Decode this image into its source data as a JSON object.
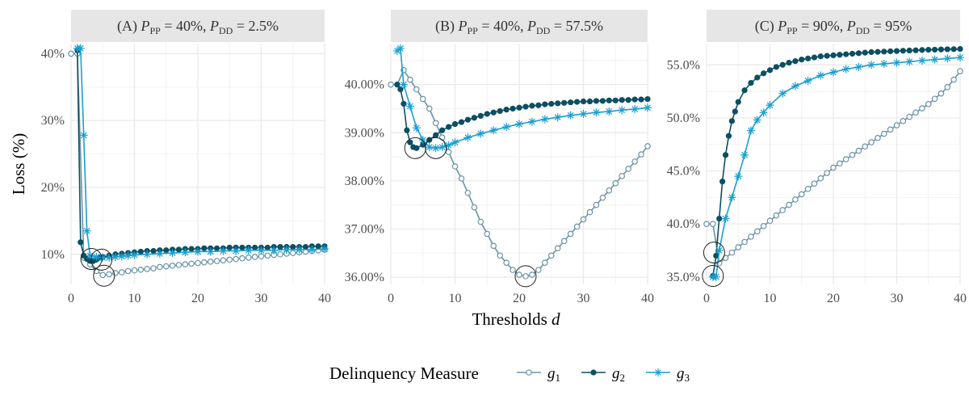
{
  "y_axis_title": "Loss (%)",
  "x_axis_title": "Thresholds",
  "x_axis_title_var": "d",
  "legend": {
    "title": "Delinquency Measure",
    "items": [
      {
        "label": "g",
        "sub": "1"
      },
      {
        "label": "g",
        "sub": "2"
      },
      {
        "label": "g",
        "sub": "3"
      }
    ]
  },
  "colors": {
    "g1": "#6b93a6",
    "g2": "#0b4f63",
    "g3": "#1a9fd1",
    "strip_bg": "#e6e6e6",
    "grid": "#ebebeb"
  },
  "chart_data": [
    {
      "type": "line",
      "title": "(A) P_PP = 40%,  P_DD = 2.5%",
      "title_parts": {
        "prefix": "(A) ",
        "p1": "P",
        "s1": "PP",
        "v1": " = 40%,  ",
        "p2": "P",
        "s2": "DD",
        "v2": " = 2.5%"
      },
      "xlim": [
        0,
        40
      ],
      "ylim": [
        5.5,
        41.5
      ],
      "x_ticks": [
        0,
        10,
        20,
        30,
        40
      ],
      "y_ticks": [
        10,
        20,
        30,
        40
      ],
      "y_tick_labels": [
        "10%",
        "20%",
        "30%",
        "40%"
      ],
      "series": [
        {
          "name": "g1",
          "x": [
            0,
            1,
            2,
            3,
            4,
            5,
            6,
            7,
            8,
            9,
            10,
            11,
            12,
            13,
            14,
            15,
            16,
            17,
            18,
            19,
            20,
            21,
            22,
            23,
            24,
            25,
            26,
            27,
            28,
            29,
            30,
            31,
            32,
            33,
            34,
            35,
            36,
            37,
            38,
            39,
            40
          ],
          "y": [
            40,
            40,
            9.5,
            8.5,
            7.5,
            6.9,
            7.0,
            7.2,
            7.3,
            7.5,
            7.6,
            7.7,
            7.8,
            7.9,
            8.1,
            8.2,
            8.3,
            8.4,
            8.5,
            8.6,
            8.7,
            8.8,
            8.9,
            9.0,
            9.1,
            9.2,
            9.3,
            9.4,
            9.5,
            9.6,
            9.7,
            9.8,
            9.9,
            10.0,
            10.1,
            10.2,
            10.3,
            10.4,
            10.5,
            10.6,
            10.7
          ]
        },
        {
          "name": "g2",
          "x": [
            1,
            1.5,
            2,
            2.5,
            3,
            3.5,
            4,
            4.5,
            5,
            6,
            7,
            8,
            9,
            10,
            11,
            12,
            13,
            14,
            15,
            16,
            17,
            18,
            19,
            20,
            21,
            22,
            23,
            24,
            25,
            26,
            27,
            28,
            29,
            30,
            31,
            32,
            33,
            34,
            35,
            36,
            37,
            38,
            39,
            40
          ],
          "y": [
            40.5,
            11.8,
            9.8,
            9.3,
            9.0,
            9.0,
            9.2,
            9.5,
            9.6,
            9.8,
            10.0,
            10.1,
            10.2,
            10.3,
            10.4,
            10.5,
            10.5,
            10.6,
            10.6,
            10.7,
            10.7,
            10.8,
            10.8,
            10.8,
            10.9,
            10.9,
            10.9,
            10.9,
            11.0,
            11.0,
            11.0,
            11.0,
            11.0,
            11.0,
            11.0,
            11.1,
            11.1,
            11.1,
            11.1,
            11.1,
            11.1,
            11.2,
            11.2,
            11.2
          ]
        },
        {
          "name": "g3",
          "x": [
            1,
            1.5,
            2,
            2.5,
            3,
            4,
            5,
            6,
            7,
            8,
            9,
            10,
            12,
            14,
            16,
            18,
            20,
            22,
            24,
            26,
            28,
            30,
            32,
            34,
            36,
            38,
            40
          ],
          "y": [
            40.8,
            40.8,
            27.8,
            13.5,
            9.8,
            9.6,
            9.5,
            9.5,
            9.6,
            9.7,
            9.8,
            9.9,
            10.0,
            10.1,
            10.2,
            10.3,
            10.4,
            10.4,
            10.5,
            10.5,
            10.6,
            10.6,
            10.6,
            10.7,
            10.7,
            10.7,
            10.8
          ]
        }
      ],
      "circles": [
        [
          3.2,
          9.3
        ],
        [
          4.8,
          9.2
        ],
        [
          5.2,
          6.8
        ]
      ]
    },
    {
      "type": "line",
      "title": "(B) P_PP = 40%,  P_DD = 57.5%",
      "title_parts": {
        "prefix": "(B) ",
        "p1": "P",
        "s1": "PP",
        "v1": " = 40%,  ",
        "p2": "P",
        "s2": "DD",
        "v2": " = 57.5%"
      },
      "xlim": [
        0,
        40
      ],
      "ylim": [
        35.85,
        40.85
      ],
      "x_ticks": [
        0,
        10,
        20,
        30,
        40
      ],
      "y_ticks": [
        36,
        37,
        38,
        39,
        40
      ],
      "y_tick_labels": [
        "36.00%",
        "37.00%",
        "38.00%",
        "39.00%",
        "40.00%"
      ],
      "series": [
        {
          "name": "g1",
          "x": [
            0,
            1,
            2,
            3,
            4,
            5,
            6,
            7,
            8,
            9,
            10,
            11,
            12,
            13,
            14,
            15,
            16,
            17,
            18,
            19,
            20,
            21,
            22,
            23,
            24,
            25,
            26,
            27,
            28,
            29,
            30,
            31,
            32,
            33,
            34,
            35,
            36,
            37,
            38,
            39,
            40
          ],
          "y": [
            40.0,
            40.0,
            40.3,
            40.1,
            39.9,
            39.7,
            39.5,
            39.2,
            38.9,
            38.6,
            38.3,
            38.05,
            37.75,
            37.45,
            37.15,
            36.9,
            36.65,
            36.45,
            36.3,
            36.15,
            36.05,
            36.02,
            36.05,
            36.15,
            36.3,
            36.45,
            36.6,
            36.75,
            36.9,
            37.05,
            37.2,
            37.35,
            37.5,
            37.65,
            37.8,
            37.95,
            38.1,
            38.25,
            38.4,
            38.55,
            38.72
          ]
        },
        {
          "name": "g2",
          "x": [
            1,
            1.5,
            2,
            2.5,
            3,
            3.5,
            4,
            5,
            6,
            7,
            8,
            9,
            10,
            11,
            12,
            13,
            14,
            15,
            16,
            17,
            18,
            19,
            20,
            21,
            22,
            23,
            24,
            25,
            26,
            27,
            28,
            29,
            30,
            31,
            32,
            33,
            34,
            35,
            36,
            37,
            38,
            39,
            40
          ],
          "y": [
            40.0,
            39.9,
            39.6,
            39.05,
            38.8,
            38.7,
            38.68,
            38.75,
            38.85,
            38.95,
            39.05,
            39.12,
            39.18,
            39.22,
            39.27,
            39.31,
            39.35,
            39.39,
            39.42,
            39.45,
            39.48,
            39.5,
            39.52,
            39.54,
            39.56,
            39.57,
            39.59,
            39.6,
            39.61,
            39.62,
            39.63,
            39.64,
            39.65,
            39.65,
            39.66,
            39.66,
            39.67,
            39.67,
            39.68,
            39.68,
            39.69,
            39.69,
            39.7
          ]
        },
        {
          "name": "g3",
          "x": [
            1,
            1.5,
            2,
            3,
            4,
            5,
            6,
            7,
            8,
            9,
            10,
            12,
            14,
            16,
            18,
            20,
            22,
            24,
            26,
            28,
            30,
            32,
            34,
            36,
            38,
            40
          ],
          "y": [
            40.7,
            40.75,
            40.0,
            39.55,
            39.1,
            38.85,
            38.7,
            38.68,
            38.7,
            38.74,
            38.8,
            38.9,
            38.98,
            39.05,
            39.12,
            39.18,
            39.23,
            39.28,
            39.32,
            39.36,
            39.39,
            39.42,
            39.44,
            39.47,
            39.49,
            39.52
          ]
        }
      ],
      "circles": [
        [
          3.8,
          38.68
        ],
        [
          7.0,
          38.68
        ],
        [
          21.0,
          36.02
        ]
      ]
    },
    {
      "type": "line",
      "title": "(C) P_PP = 90%,  P_DD = 95%",
      "title_parts": {
        "prefix": "(C) ",
        "p1": "P",
        "s1": "PP",
        "v1": " = 90%,  ",
        "p2": "P",
        "s2": "DD",
        "v2": " = 95%"
      },
      "xlim": [
        0,
        40
      ],
      "ylim": [
        34.3,
        57.0
      ],
      "x_ticks": [
        0,
        10,
        20,
        30,
        40
      ],
      "y_ticks": [
        35,
        40,
        45,
        50,
        55
      ],
      "y_tick_labels": [
        "35.0%",
        "40.0%",
        "45.0%",
        "50.0%",
        "55.0%"
      ],
      "series": [
        {
          "name": "g1",
          "x": [
            0,
            1,
            2,
            3,
            4,
            5,
            6,
            7,
            8,
            9,
            10,
            11,
            12,
            13,
            14,
            15,
            16,
            17,
            18,
            19,
            20,
            21,
            22,
            23,
            24,
            25,
            26,
            27,
            28,
            29,
            30,
            31,
            32,
            33,
            34,
            35,
            36,
            37,
            38,
            39,
            40
          ],
          "y": [
            40.0,
            40.0,
            36.3,
            36.8,
            37.3,
            37.8,
            38.3,
            38.8,
            39.3,
            39.8,
            40.3,
            40.8,
            41.3,
            41.8,
            42.3,
            42.8,
            43.3,
            43.8,
            44.3,
            44.8,
            45.3,
            45.7,
            46.1,
            46.5,
            46.9,
            47.3,
            47.7,
            48.1,
            48.5,
            48.9,
            49.3,
            49.7,
            50.1,
            50.5,
            50.9,
            51.3,
            51.8,
            52.3,
            52.9,
            53.6,
            54.4
          ]
        },
        {
          "name": "g2",
          "x": [
            1,
            1.5,
            2,
            2.5,
            3,
            3.5,
            4,
            4.5,
            5,
            6,
            7,
            8,
            9,
            10,
            11,
            12,
            13,
            14,
            15,
            16,
            17,
            18,
            19,
            20,
            21,
            22,
            23,
            24,
            25,
            26,
            27,
            28,
            29,
            30,
            31,
            32,
            33,
            34,
            35,
            36,
            37,
            38,
            39,
            40
          ],
          "y": [
            35.1,
            37.0,
            40.5,
            44.0,
            46.5,
            48.3,
            49.7,
            50.6,
            51.5,
            52.6,
            53.3,
            53.8,
            54.2,
            54.5,
            54.8,
            55.0,
            55.2,
            55.35,
            55.5,
            55.6,
            55.7,
            55.8,
            55.85,
            55.9,
            55.95,
            56.0,
            56.05,
            56.1,
            56.15,
            56.2,
            56.22,
            56.25,
            56.28,
            56.3,
            56.33,
            56.35,
            56.37,
            56.4,
            56.42,
            56.43,
            56.45,
            56.47,
            56.48,
            56.5
          ]
        },
        {
          "name": "g3",
          "x": [
            1,
            1.5,
            2,
            3,
            4,
            5,
            6,
            7,
            8,
            9,
            10,
            12,
            14,
            16,
            18,
            20,
            22,
            24,
            26,
            28,
            30,
            32,
            34,
            36,
            38,
            40
          ],
          "y": [
            35.0,
            35.0,
            37.5,
            40.5,
            42.5,
            44.5,
            46.5,
            48.8,
            49.8,
            50.5,
            51.2,
            52.3,
            53.0,
            53.5,
            54.0,
            54.3,
            54.6,
            54.8,
            55.0,
            55.1,
            55.2,
            55.3,
            55.4,
            55.5,
            55.6,
            55.7
          ]
        }
      ],
      "circles": [
        [
          1.2,
          37.3
        ],
        [
          1.0,
          35.1
        ]
      ]
    }
  ]
}
